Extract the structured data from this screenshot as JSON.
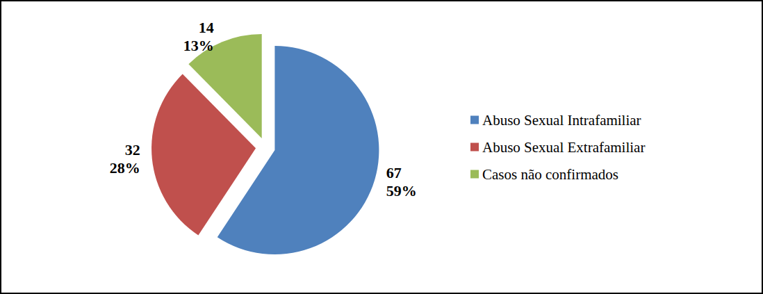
{
  "chart_data": {
    "type": "pie",
    "categories": [
      "Abuso Sexual Intrafamiliar",
      "Abuso Sexual Extrafamiliar",
      "Casos não confirmados"
    ],
    "values": [
      67,
      32,
      14
    ],
    "value_labels": [
      "67\n59%",
      "32\n28%",
      "14\n13%"
    ],
    "colors": [
      "#4f81bd",
      "#c0504d",
      "#9bbb59"
    ],
    "data_labels": true,
    "legend": "right"
  }
}
